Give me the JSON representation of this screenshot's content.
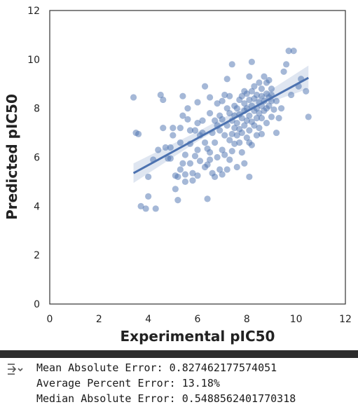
{
  "chart_data": {
    "type": "scatter",
    "title": "",
    "xlabel": "Experimental pIC50",
    "ylabel": "Predicted pIC50",
    "xlim": [
      0,
      12
    ],
    "ylim": [
      0,
      12
    ],
    "x_ticks": [
      "0",
      "2",
      "4",
      "6",
      "8",
      "10",
      "12"
    ],
    "y_ticks": [
      "0",
      "2",
      "4",
      "6",
      "8",
      "10",
      "12"
    ],
    "grid": false,
    "point_color": "#4c72b0",
    "regression_line": {
      "x": [
        3.4,
        10.5
      ],
      "y": [
        5.35,
        9.25
      ]
    },
    "confidence_band": {
      "x": [
        3.4,
        6.0,
        7.5,
        8.5,
        10.5
      ],
      "lower": [
        4.95,
        6.65,
        7.55,
        8.1,
        8.8
      ],
      "upper": [
        5.75,
        7.05,
        7.85,
        8.45,
        9.75
      ]
    },
    "points": [
      [
        3.4,
        8.45
      ],
      [
        3.5,
        7.0
      ],
      [
        3.6,
        6.95
      ],
      [
        3.7,
        4.0
      ],
      [
        3.9,
        3.9
      ],
      [
        4.0,
        4.4
      ],
      [
        4.0,
        5.2
      ],
      [
        4.2,
        5.9
      ],
      [
        4.3,
        3.9
      ],
      [
        4.4,
        6.3
      ],
      [
        4.5,
        8.55
      ],
      [
        4.6,
        8.35
      ],
      [
        4.6,
        7.2
      ],
      [
        4.7,
        6.4
      ],
      [
        4.8,
        5.95
      ],
      [
        4.9,
        5.95
      ],
      [
        4.9,
        6.4
      ],
      [
        5.0,
        7.2
      ],
      [
        5.0,
        6.9
      ],
      [
        5.1,
        5.25
      ],
      [
        5.1,
        4.7
      ],
      [
        5.2,
        4.25
      ],
      [
        5.2,
        5.2
      ],
      [
        5.3,
        5.5
      ],
      [
        5.3,
        6.6
      ],
      [
        5.3,
        7.2
      ],
      [
        5.4,
        7.7
      ],
      [
        5.4,
        8.5
      ],
      [
        5.4,
        5.75
      ],
      [
        5.5,
        5.0
      ],
      [
        5.5,
        5.3
      ],
      [
        5.5,
        6.1
      ],
      [
        5.6,
        7.55
      ],
      [
        5.6,
        8.0
      ],
      [
        5.7,
        7.1
      ],
      [
        5.7,
        6.55
      ],
      [
        5.7,
        5.75
      ],
      [
        5.8,
        5.35
      ],
      [
        5.8,
        5.05
      ],
      [
        5.9,
        6.05
      ],
      [
        5.9,
        7.1
      ],
      [
        6.0,
        7.4
      ],
      [
        6.0,
        8.25
      ],
      [
        6.0,
        6.3
      ],
      [
        6.0,
        5.25
      ],
      [
        6.1,
        6.9
      ],
      [
        6.1,
        5.85
      ],
      [
        6.2,
        7.0
      ],
      [
        6.2,
        7.5
      ],
      [
        6.3,
        8.9
      ],
      [
        6.3,
        6.6
      ],
      [
        6.3,
        5.6
      ],
      [
        6.4,
        6.35
      ],
      [
        6.4,
        4.3
      ],
      [
        6.4,
        5.7
      ],
      [
        6.5,
        7.8
      ],
      [
        6.5,
        8.45
      ],
      [
        6.5,
        6.2
      ],
      [
        6.5,
        5.9
      ],
      [
        6.6,
        7.0
      ],
      [
        6.6,
        5.35
      ],
      [
        6.7,
        7.5
      ],
      [
        6.7,
        6.6
      ],
      [
        6.7,
        5.2
      ],
      [
        6.8,
        8.2
      ],
      [
        6.8,
        7.3
      ],
      [
        6.8,
        6.0
      ],
      [
        6.9,
        7.7
      ],
      [
        6.9,
        7.1
      ],
      [
        6.9,
        5.5
      ],
      [
        7.0,
        8.3
      ],
      [
        7.0,
        7.55
      ],
      [
        7.0,
        6.3
      ],
      [
        7.0,
        5.3
      ],
      [
        7.1,
        8.55
      ],
      [
        7.1,
        6.9
      ],
      [
        7.1,
        6.1
      ],
      [
        7.2,
        9.2
      ],
      [
        7.2,
        8.0
      ],
      [
        7.2,
        7.3
      ],
      [
        7.2,
        5.5
      ],
      [
        7.3,
        8.5
      ],
      [
        7.3,
        7.8
      ],
      [
        7.3,
        6.7
      ],
      [
        7.3,
        5.9
      ],
      [
        7.4,
        9.8
      ],
      [
        7.4,
        7.5
      ],
      [
        7.4,
        6.95
      ],
      [
        7.4,
        6.25
      ],
      [
        7.5,
        8.1
      ],
      [
        7.5,
        7.7
      ],
      [
        7.5,
        7.2
      ],
      [
        7.5,
        6.55
      ],
      [
        7.6,
        8.0
      ],
      [
        7.6,
        7.4
      ],
      [
        7.6,
        6.9
      ],
      [
        7.6,
        5.6
      ],
      [
        7.7,
        8.35
      ],
      [
        7.7,
        7.75
      ],
      [
        7.7,
        7.15
      ],
      [
        7.7,
        6.6
      ],
      [
        7.8,
        8.5
      ],
      [
        7.8,
        7.6
      ],
      [
        7.8,
        7.0
      ],
      [
        7.8,
        6.2
      ],
      [
        7.9,
        8.2
      ],
      [
        7.9,
        7.9
      ],
      [
        7.9,
        7.3
      ],
      [
        7.9,
        5.75
      ],
      [
        8.0,
        8.6
      ],
      [
        8.0,
        8.0
      ],
      [
        8.0,
        7.5
      ],
      [
        8.0,
        6.8
      ],
      [
        8.1,
        9.3
      ],
      [
        8.1,
        8.35
      ],
      [
        8.1,
        7.7
      ],
      [
        8.1,
        7.1
      ],
      [
        8.1,
        6.6
      ],
      [
        8.1,
        5.2
      ],
      [
        8.2,
        9.9
      ],
      [
        8.2,
        8.7
      ],
      [
        8.2,
        8.1
      ],
      [
        8.2,
        7.45
      ],
      [
        8.2,
        6.5
      ],
      [
        8.3,
        8.4
      ],
      [
        8.3,
        7.9
      ],
      [
        8.3,
        7.3
      ],
      [
        8.4,
        8.55
      ],
      [
        8.4,
        8.0
      ],
      [
        8.4,
        7.6
      ],
      [
        8.4,
        6.9
      ],
      [
        8.5,
        9.05
      ],
      [
        8.5,
        8.25
      ],
      [
        8.5,
        7.8
      ],
      [
        8.5,
        7.2
      ],
      [
        8.6,
        8.5
      ],
      [
        8.6,
        8.1
      ],
      [
        8.6,
        7.6
      ],
      [
        8.6,
        6.95
      ],
      [
        8.7,
        9.3
      ],
      [
        8.7,
        8.3
      ],
      [
        8.7,
        7.9
      ],
      [
        8.8,
        8.6
      ],
      [
        8.8,
        8.0
      ],
      [
        8.8,
        7.4
      ],
      [
        8.9,
        9.15
      ],
      [
        8.9,
        8.45
      ],
      [
        8.9,
        8.1
      ],
      [
        9.0,
        8.8
      ],
      [
        9.0,
        8.3
      ],
      [
        9.0,
        7.65
      ],
      [
        9.0,
        8.55
      ],
      [
        9.1,
        7.95
      ],
      [
        9.2,
        8.3
      ],
      [
        9.2,
        7.0
      ],
      [
        9.3,
        7.6
      ],
      [
        9.4,
        8.0
      ],
      [
        9.5,
        9.5
      ],
      [
        9.6,
        9.8
      ],
      [
        9.7,
        10.35
      ],
      [
        9.8,
        8.55
      ],
      [
        9.9,
        10.35
      ],
      [
        10.1,
        8.9
      ],
      [
        10.2,
        9.2
      ],
      [
        10.4,
        8.7
      ],
      [
        10.5,
        7.65
      ],
      [
        8.3,
        8.9
      ],
      [
        8.8,
        9.05
      ],
      [
        7.9,
        8.7
      ],
      [
        8.6,
        8.8
      ]
    ]
  },
  "output": {
    "icon": "output-toggle-icon",
    "lines": [
      "Mean Absolute Error: 0.827462177574051",
      "Average Percent Error: 13.18%",
      "Median Absolute Error: 0.5488562401770318"
    ]
  }
}
